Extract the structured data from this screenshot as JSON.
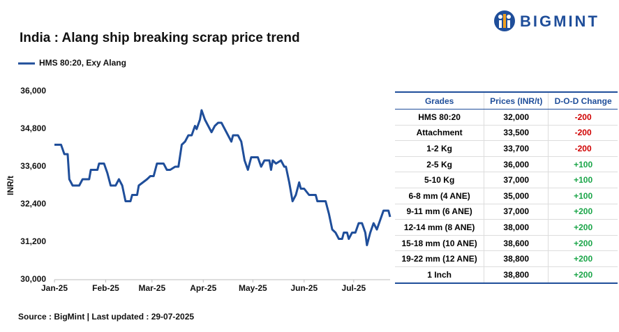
{
  "logo": "BIGMINT",
  "source": "Source : BigMint | Last updated : 29-07-2025",
  "chart_data": {
    "type": "line",
    "title": "India : Alang ship breaking scrap price trend",
    "y_label": "INR/t",
    "grid": false,
    "series": [
      {
        "name": "HMS 80:20, Exy Alang",
        "color": "#1f4e9a",
        "x": [
          0,
          4,
          6,
          8,
          9,
          11,
          15,
          17,
          21,
          22,
          26,
          27,
          30,
          32,
          34,
          37,
          39,
          41,
          43,
          46,
          47,
          50,
          51,
          56,
          58,
          60,
          62,
          66,
          68,
          70,
          73,
          75,
          77,
          79,
          81,
          83,
          85,
          86,
          88,
          89,
          91,
          93,
          95,
          97,
          99,
          101,
          103,
          105,
          107,
          108,
          111,
          113,
          115,
          117,
          119,
          123,
          125,
          127,
          130,
          131,
          132,
          134,
          137,
          139,
          140,
          142,
          144,
          146,
          148,
          149,
          151,
          154,
          155,
          158,
          159,
          164,
          166,
          168,
          170,
          172,
          174,
          175,
          177,
          178,
          180,
          182,
          184,
          186,
          188,
          189,
          191,
          193,
          195,
          197,
          199,
          202,
          203
        ],
        "values": [
          34300,
          34300,
          34000,
          34000,
          33200,
          33000,
          33000,
          33200,
          33200,
          33500,
          33500,
          33700,
          33700,
          33400,
          33000,
          33000,
          33200,
          33000,
          32500,
          32500,
          32700,
          32700,
          33000,
          33200,
          33300,
          33300,
          33700,
          33700,
          33500,
          33500,
          33600,
          33600,
          34300,
          34400,
          34600,
          34600,
          34900,
          34800,
          35100,
          35400,
          35100,
          34900,
          34700,
          34900,
          35000,
          35000,
          34800,
          34600,
          34400,
          34600,
          34600,
          34400,
          33800,
          33500,
          33900,
          33900,
          33600,
          33800,
          33800,
          33500,
          33800,
          33700,
          33800,
          33600,
          33600,
          33100,
          32500,
          32700,
          33100,
          32900,
          32900,
          32700,
          32700,
          32700,
          32500,
          32500,
          32100,
          31600,
          31500,
          31300,
          31300,
          31500,
          31500,
          31300,
          31500,
          31500,
          31800,
          31800,
          31500,
          31100,
          31500,
          31800,
          31600,
          31900,
          32200,
          32200,
          32000
        ]
      }
    ],
    "xlim": [
      0,
      203
    ],
    "xticks": [
      {
        "value": 0,
        "label": "Jan-25"
      },
      {
        "value": 31,
        "label": "Feb-25"
      },
      {
        "value": 59,
        "label": "Mar-25"
      },
      {
        "value": 90,
        "label": "Apr-25"
      },
      {
        "value": 120,
        "label": "May-25"
      },
      {
        "value": 151,
        "label": "Jun-25"
      },
      {
        "value": 181,
        "label": "Jul-25"
      }
    ],
    "ylim": [
      30000,
      36000
    ],
    "yticks": [
      {
        "value": 30000,
        "label": "30,000"
      },
      {
        "value": 31200,
        "label": "31,200"
      },
      {
        "value": 32400,
        "label": "32,400"
      },
      {
        "value": 33600,
        "label": "33,600"
      },
      {
        "value": 34800,
        "label": "34,800"
      },
      {
        "value": 36000,
        "label": "36,000"
      }
    ]
  },
  "table": {
    "header": [
      "Grades",
      "Prices (INR/t)",
      "D-O-D Change"
    ],
    "rows": [
      [
        "HMS 80:20",
        "32,000",
        "-200"
      ],
      [
        "Attachment",
        "33,500",
        "-200"
      ],
      [
        "1-2 Kg",
        "33,700",
        "-200"
      ],
      [
        "2-5 Kg",
        "36,000",
        "+100"
      ],
      [
        "5-10 Kg",
        "37,000",
        "+100"
      ],
      [
        "6-8 mm (4 ANE)",
        "35,000",
        "+100"
      ],
      [
        "9-11 mm (6 ANE)",
        "37,000",
        "+200"
      ],
      [
        "12-14 mm (8 ANE)",
        "38,000",
        "+200"
      ],
      [
        "15-18 mm (10 ANE)",
        "38,600",
        "+200"
      ],
      [
        "19-22 mm (12 ANE)",
        "38,800",
        "+200"
      ],
      [
        "1 Inch",
        "38,800",
        "+200"
      ]
    ]
  }
}
